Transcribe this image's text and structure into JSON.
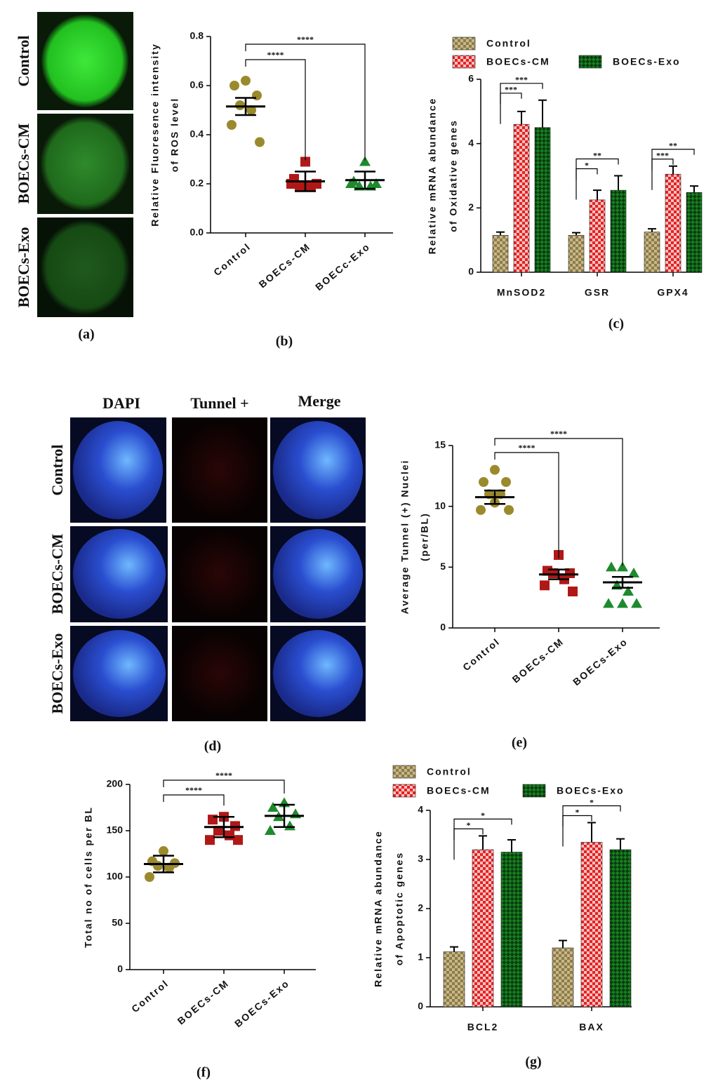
{
  "images_a": {
    "panel": "(a)",
    "rows": [
      "Control",
      "BOECs-CM",
      "BOECs-Exo"
    ]
  },
  "images_d": {
    "panel": "(d)",
    "columns": [
      "DAPI",
      "Tunnel +",
      "Merge"
    ],
    "rows": [
      "Control",
      "BOECs-CM",
      "BOECs-Exo"
    ]
  },
  "chart_data": [
    {
      "type": "scatter",
      "panel": "(b)",
      "ylabel": [
        "Relative Fluoresence intensity",
        "of ROS level"
      ],
      "categories": [
        "Control",
        "BOECs-CM",
        "BOECc-Exo"
      ],
      "colors": [
        "#9a8a2c",
        "#b01818",
        "#1e8a2e"
      ],
      "markers": [
        "circle",
        "square",
        "triangle"
      ],
      "values": [
        [
          0.62,
          0.6,
          0.56,
          0.52,
          0.5,
          0.44,
          0.37
        ],
        [
          0.29,
          0.22,
          0.2,
          0.19,
          0.19,
          0.2
        ],
        [
          0.29,
          0.21,
          0.2,
          0.19,
          0.19,
          0.2
        ]
      ],
      "means": [
        0.515,
        0.21,
        0.215
      ],
      "errors": [
        0.035,
        0.04,
        0.035
      ],
      "ylim": [
        0,
        0.8
      ],
      "yticks": [
        {
          "value": 0,
          "label": "0.0"
        },
        0.2,
        0.4,
        0.6,
        0.8
      ],
      "annotations": [
        {
          "label": "****",
          "from": 0,
          "to": 1
        },
        {
          "label": "****",
          "from": 0,
          "to": 2
        }
      ]
    },
    {
      "type": "bar",
      "panel": "(c)",
      "ylabel": [
        "Relative mRNA abundance",
        "of Oxidative genes"
      ],
      "categories": [
        "MnSOD2",
        "GSR",
        "GPX4"
      ],
      "series": [
        {
          "name": "Control",
          "color": "#8c7c4c",
          "values": [
            1.15,
            1.15,
            1.25
          ],
          "errors": [
            0.1,
            0.08,
            0.1
          ]
        },
        {
          "name": "BOECs-CM",
          "color": "#e02424",
          "values": [
            4.6,
            2.25,
            3.05
          ],
          "errors": [
            0.4,
            0.3,
            0.25
          ]
        },
        {
          "name": "BOECs-Exo",
          "color": "#17801f",
          "values": [
            4.5,
            2.55,
            2.48
          ],
          "errors": [
            0.85,
            0.45,
            0.2
          ]
        }
      ],
      "ylim": [
        0,
        6
      ],
      "yticks": [
        0,
        2,
        4,
        6
      ],
      "annotations": [
        {
          "category": 0,
          "label": "***",
          "from": 0,
          "to": 1
        },
        {
          "category": 0,
          "label": "***",
          "from": 0,
          "to": 2
        },
        {
          "category": 1,
          "label": "*",
          "from": 0,
          "to": 1
        },
        {
          "category": 1,
          "label": "**",
          "from": 0,
          "to": 2
        },
        {
          "category": 2,
          "label": "***",
          "from": 0,
          "to": 1
        },
        {
          "category": 2,
          "label": "**",
          "from": 0,
          "to": 2
        }
      ]
    },
    {
      "type": "scatter",
      "panel": "(e)",
      "ylabel": [
        "Average Tunnel (+) Nuclei",
        "(per/BL)"
      ],
      "categories": [
        "Control",
        "BOECs-CM",
        "BOECs-Exo"
      ],
      "colors": [
        "#9a8a2c",
        "#b01818",
        "#1e8a2e"
      ],
      "markers": [
        "circle",
        "square",
        "triangle"
      ],
      "values": [
        [
          13,
          12,
          12,
          11,
          11,
          9.7,
          9.7,
          10.3
        ],
        [
          6,
          4.7,
          4.5,
          4.5,
          4,
          3.5,
          3
        ],
        [
          5,
          5,
          4.5,
          3.5,
          3,
          2,
          2,
          2
        ]
      ],
      "means": [
        10.75,
        4.4,
        3.75
      ],
      "errors": [
        0.55,
        0.4,
        0.45
      ],
      "ylim": [
        0,
        15
      ],
      "yticks": [
        0,
        5,
        10,
        15
      ],
      "annotations": [
        {
          "label": "****",
          "from": 0,
          "to": 1
        },
        {
          "label": "****",
          "from": 0,
          "to": 2
        }
      ]
    },
    {
      "type": "scatter",
      "panel": "(f)",
      "ylabel": [
        "Total no of cells per BL"
      ],
      "categories": [
        "Control",
        "BOECs-CM",
        "BOECs-Exo"
      ],
      "colors": [
        "#9a8a2c",
        "#b01818",
        "#1e8a2e"
      ],
      "markers": [
        "circle",
        "square",
        "triangle"
      ],
      "values": [
        [
          128,
          117,
          115,
          112,
          110,
          100
        ],
        [
          165,
          162,
          155,
          150,
          145,
          140,
          140
        ],
        [
          180,
          175,
          168,
          165,
          155,
          150
        ]
      ],
      "means": [
        114,
        154,
        166
      ],
      "errors": [
        9,
        11,
        12
      ],
      "ylim": [
        0,
        200
      ],
      "yticks": [
        0,
        50,
        100,
        150,
        200
      ],
      "annotations": [
        {
          "label": "****",
          "from": 0,
          "to": 1
        },
        {
          "label": "****",
          "from": 0,
          "to": 2
        }
      ]
    },
    {
      "type": "bar",
      "panel": "(g)",
      "ylabel": [
        "Relative mRNA abundance",
        "of Apoptotic genes"
      ],
      "categories": [
        "BCL2",
        "BAX"
      ],
      "series": [
        {
          "name": "Control",
          "color": "#8c7c4c",
          "values": [
            1.12,
            1.2
          ],
          "errors": [
            0.1,
            0.15
          ]
        },
        {
          "name": "BOECs-CM",
          "color": "#e02424",
          "values": [
            3.2,
            3.35
          ],
          "errors": [
            0.28,
            0.4
          ]
        },
        {
          "name": "BOECs-Exo",
          "color": "#17801f",
          "values": [
            3.15,
            3.2
          ],
          "errors": [
            0.25,
            0.22
          ]
        }
      ],
      "ylim": [
        0,
        4
      ],
      "yticks": [
        0,
        1,
        2,
        3,
        4
      ],
      "annotations": [
        {
          "category": 0,
          "label": "*",
          "from": 0,
          "to": 1
        },
        {
          "category": 0,
          "label": "*",
          "from": 0,
          "to": 2
        },
        {
          "category": 1,
          "label": "*",
          "from": 0,
          "to": 1
        },
        {
          "category": 1,
          "label": "*",
          "from": 0,
          "to": 2
        }
      ]
    }
  ]
}
